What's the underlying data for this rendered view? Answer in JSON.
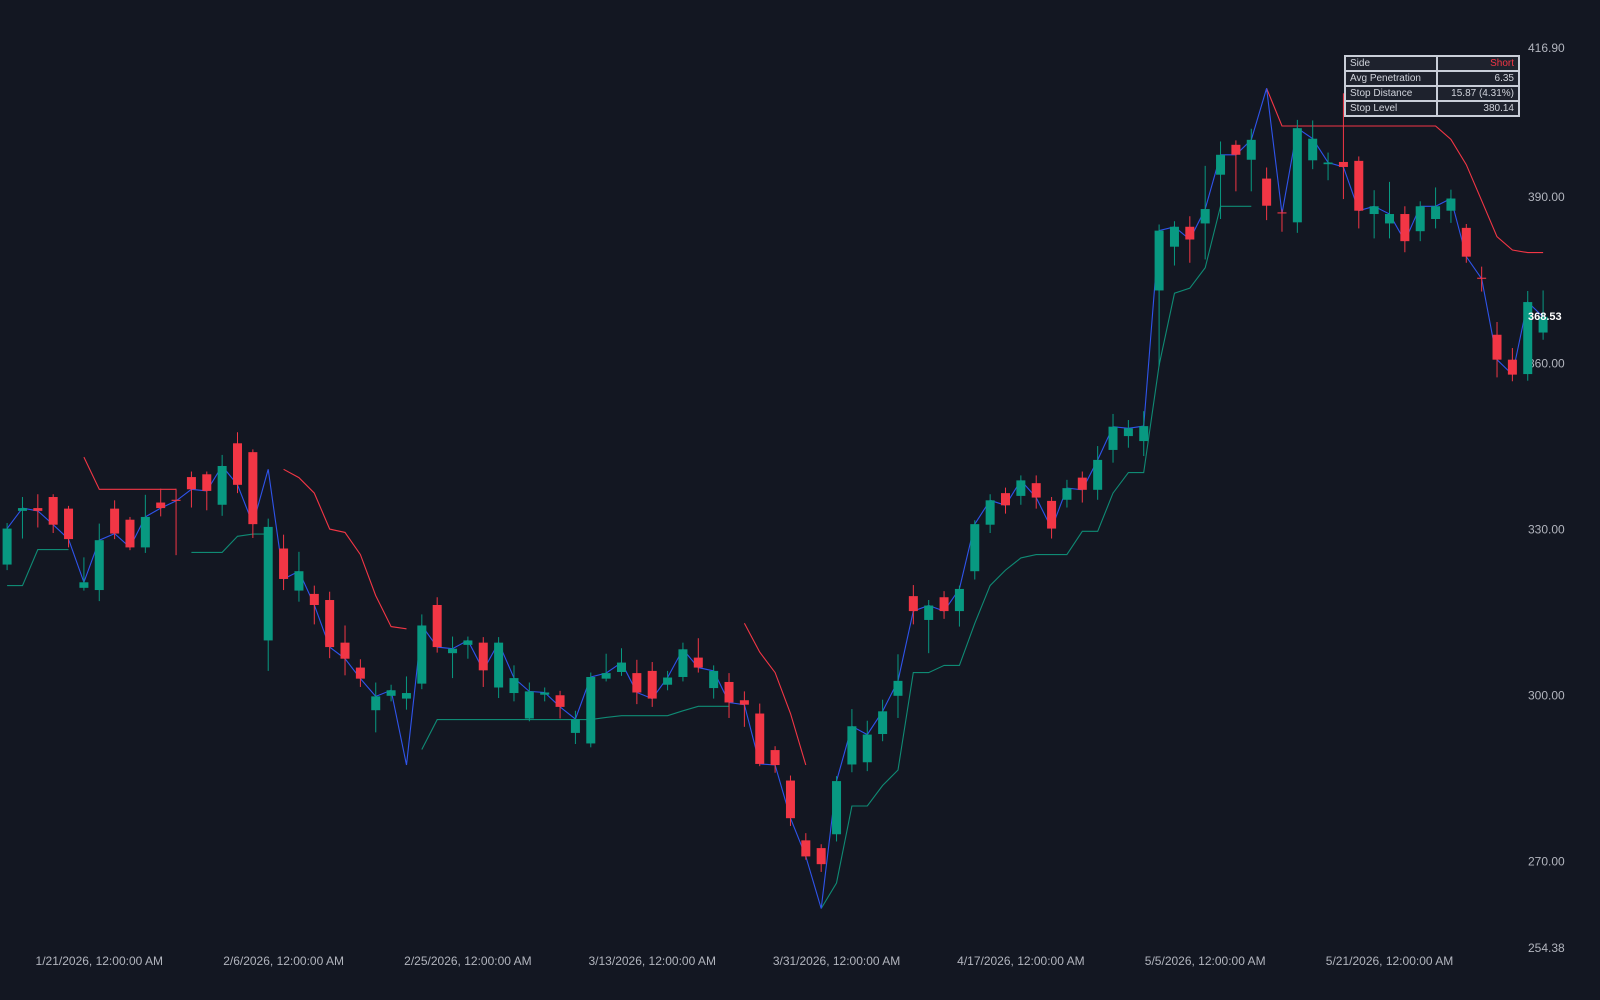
{
  "chart_data": {
    "type": "candlestick",
    "categories": [
      null,
      null,
      null,
      null,
      null,
      null,
      "1/21/2026, 12:00:00 AM",
      null,
      null,
      null,
      null,
      null,
      null,
      null,
      null,
      null,
      null,
      null,
      "2/6/2026, 12:00:00 AM",
      null,
      null,
      null,
      null,
      null,
      null,
      null,
      null,
      null,
      null,
      null,
      "2/25/2026, 12:00:00 AM",
      null,
      null,
      null,
      null,
      null,
      null,
      null,
      null,
      null,
      null,
      null,
      "3/13/2026, 12:00:00 AM",
      null,
      null,
      null,
      null,
      null,
      null,
      null,
      null,
      null,
      null,
      null,
      "3/31/2026, 12:00:00 AM",
      null,
      null,
      null,
      null,
      null,
      null,
      null,
      null,
      null,
      null,
      null,
      "4/17/2026, 12:00:00 AM",
      null,
      null,
      null,
      null,
      null,
      null,
      null,
      null,
      null,
      null,
      null,
      "5/5/2026, 12:00:00 AM",
      null,
      null,
      null,
      null,
      null,
      null,
      null,
      null,
      null,
      null,
      null,
      "5/21/2026, 12:00:00 AM",
      null,
      null,
      null,
      null,
      null,
      null,
      null,
      null,
      null,
      null
    ],
    "open": [
      323.8,
      333.5,
      334,
      336,
      333.9,
      319.6,
      319.2,
      333.9,
      331.9,
      326.9,
      335,
      335.5,
      339.6,
      340.1,
      334.6,
      345.7,
      344.1,
      310.1,
      326.7,
      319.1,
      318.5,
      317.4,
      309.7,
      305.2,
      297.5,
      300.1,
      299.6,
      302.3,
      316.5,
      307.8,
      309.3,
      309.7,
      301.6,
      300.6,
      296,
      300.3,
      300.2,
      293.4,
      291.5,
      303.2,
      304.4,
      304.2,
      304.6,
      302.1,
      303.5,
      307,
      301.5,
      302.6,
      299.3,
      296.9,
      290.3,
      284.8,
      274,
      272.6,
      275.1,
      287.7,
      288.1,
      293.2,
      300.1,
      318.1,
      313.8,
      317.9,
      315.4,
      322.6,
      331,
      336.7,
      336.2,
      338.5,
      335.3,
      335.5,
      339.5,
      337.3,
      344.5,
      347,
      346.1,
      373.3,
      381.2,
      384.8,
      385.4,
      394.2,
      399.6,
      396.9,
      393.5,
      387.4,
      385.6,
      396.8,
      396.1,
      396.5,
      396.7,
      387.1,
      385.4,
      387.1,
      384,
      386.2,
      387.7,
      384.6,
      375.6,
      365.3,
      360.8,
      358.2,
      365.7
    ],
    "high": [
      331.3,
      336,
      336.5,
      336.5,
      334.4,
      325.1,
      331.2,
      335.4,
      332.4,
      336.4,
      337.5,
      337.5,
      340.6,
      340.6,
      343.6,
      347.7,
      344.6,
      332.1,
      329.2,
      326.1,
      320,
      318.9,
      312.8,
      306.7,
      302.5,
      302.1,
      303.6,
      314.8,
      317.9,
      310.8,
      310.8,
      310.7,
      310.7,
      305.6,
      302.5,
      301.6,
      301,
      297.4,
      304.3,
      307.7,
      308.7,
      306.6,
      306.2,
      304.6,
      309.7,
      310.5,
      305.6,
      304.2,
      300.9,
      298.7,
      291,
      285.7,
      275.3,
      273.3,
      285.6,
      297.7,
      295.6,
      299.4,
      307.6,
      320.1,
      317.4,
      319,
      320,
      331.8,
      336.5,
      337.7,
      339.9,
      339.9,
      336,
      339.1,
      340.6,
      345.2,
      351,
      349.9,
      351.5,
      385.2,
      385.8,
      386.7,
      395.8,
      400.2,
      400.4,
      402.5,
      395.5,
      387.9,
      404.1,
      404,
      398.2,
      408.9,
      397.5,
      391.4,
      392.9,
      388.5,
      389.4,
      391.9,
      391.5,
      385.3,
      377.6,
      367.6,
      362.9,
      373.2,
      373.3
    ],
    "low": [
      322.8,
      328.5,
      330.5,
      329.5,
      326.9,
      319.1,
      317.2,
      328.4,
      326.4,
      325.9,
      332.5,
      325.5,
      334.1,
      333.6,
      332.6,
      336.7,
      328.6,
      304.6,
      319.2,
      317.1,
      313,
      306.9,
      303.8,
      301.7,
      293.5,
      299.1,
      297.6,
      301.3,
      307.9,
      303.3,
      306.8,
      301.7,
      299.7,
      299.1,
      295.5,
      299.1,
      296,
      291.4,
      290.8,
      302.7,
      303.7,
      298.6,
      298.1,
      301.1,
      302.7,
      304.3,
      299.6,
      296.1,
      294.5,
      287.4,
      286.2,
      276.6,
      270.5,
      268.3,
      273.8,
      286.3,
      286.5,
      291.9,
      296.1,
      313,
      307.8,
      314,
      312.6,
      321.1,
      329.5,
      333,
      334.6,
      333.9,
      328.5,
      334.1,
      335,
      335.5,
      342.2,
      344.9,
      343.4,
      359.6,
      377.8,
      378.3,
      378.9,
      386.2,
      391.2,
      391.2,
      386,
      383.9,
      383.7,
      395.2,
      393.2,
      389.8,
      384.5,
      382.7,
      382.7,
      380.2,
      382.2,
      384.5,
      385.5,
      378.3,
      373.1,
      357.6,
      356.9,
      357,
      364.4
    ],
    "close": [
      330.3,
      334,
      333.5,
      331,
      328.4,
      320.6,
      328.2,
      329.4,
      326.9,
      332.4,
      334,
      335.3,
      337.4,
      337.1,
      341.6,
      338.2,
      331.1,
      330.6,
      321.2,
      322.6,
      316.5,
      308.9,
      306.8,
      303.2,
      300,
      301.1,
      300.6,
      312.8,
      308.9,
      308.6,
      310.1,
      304.7,
      309.7,
      303.3,
      300.9,
      300.7,
      298.1,
      295.9,
      303.5,
      304.2,
      306.1,
      300.7,
      299.6,
      303.4,
      308.5,
      305.2,
      304.6,
      298.9,
      298.5,
      287.8,
      287.6,
      278,
      271.1,
      269.7,
      284.7,
      294.6,
      293.1,
      297.3,
      302.8,
      315.4,
      316.4,
      315.4,
      319.4,
      331.1,
      335.4,
      334.5,
      339,
      335.9,
      330.3,
      337.6,
      337.3,
      342.7,
      348.7,
      348.4,
      348.8,
      384.1,
      384.8,
      382.5,
      388,
      397.8,
      397.8,
      400.5,
      388.6,
      387.2,
      402.6,
      400.7,
      396.4,
      395.6,
      387.7,
      388.5,
      387.1,
      382.2,
      388.5,
      388.5,
      389.9,
      379.4,
      375.4,
      360.8,
      358.1,
      371.2,
      368.53
    ],
    "up_color": "#089981",
    "down_color": "#f23645",
    "overlays": [
      {
        "color": "#0f8a74",
        "values": [
          320,
          320,
          326.5,
          326.5,
          326.5,
          null,
          null,
          null,
          null,
          null,
          null,
          null,
          326,
          326,
          326,
          328.9,
          329.3,
          329.3,
          null,
          null,
          null,
          null,
          null,
          null,
          null,
          null,
          null,
          290.4,
          295.8,
          295.8,
          295.8,
          295.8,
          295.8,
          295.8,
          295.8,
          295.8,
          295.8,
          295.8,
          295.8,
          296.2,
          296.5,
          296.5,
          296.5,
          296.5,
          297.4,
          298.2,
          298.2,
          298.2,
          null,
          null,
          null,
          null,
          null,
          261.7,
          266.3,
          280.2,
          280.2,
          283.9,
          286.7,
          304.3,
          304.3,
          305.6,
          305.6,
          313.2,
          320,
          322.8,
          325,
          325.6,
          325.6,
          325.6,
          329.8,
          329.8,
          336.7,
          340.4,
          340.4,
          359.8,
          372.8,
          373.7,
          377.4,
          388.5,
          388.5,
          388.5,
          null,
          null,
          null,
          null,
          null,
          null,
          null,
          null,
          null,
          null,
          null,
          null,
          null,
          null,
          null,
          null,
          null,
          null,
          null
        ]
      },
      {
        "color": "#f23645",
        "values": [
          null,
          null,
          null,
          null,
          null,
          343.2,
          337.4,
          337.4,
          337.4,
          337.4,
          337.4,
          337.4,
          null,
          null,
          null,
          null,
          null,
          null,
          341,
          339.5,
          336.7,
          330.2,
          329.6,
          325.6,
          318.2,
          312.6,
          312.2,
          null,
          null,
          null,
          null,
          null,
          null,
          null,
          null,
          null,
          null,
          null,
          null,
          null,
          null,
          null,
          null,
          null,
          null,
          null,
          null,
          null,
          313.2,
          308,
          304.3,
          296.9,
          287.6,
          null,
          null,
          null,
          null,
          null,
          null,
          null,
          null,
          null,
          null,
          null,
          null,
          null,
          null,
          null,
          null,
          null,
          null,
          null,
          null,
          null,
          null,
          null,
          null,
          null,
          null,
          null,
          null,
          null,
          409.8,
          403,
          403,
          403,
          403,
          403,
          403,
          403,
          403,
          403,
          403,
          403,
          400.6,
          396,
          389.5,
          383,
          380.6,
          380.14,
          380.14
        ]
      },
      {
        "color": "#2f54eb",
        "values": [
          330.3,
          334,
          333.5,
          331,
          328.4,
          320.6,
          328.2,
          329.4,
          326.9,
          332.4,
          334,
          335.3,
          337.4,
          337.1,
          341.6,
          338.2,
          331.1,
          341,
          321.2,
          322.6,
          316.5,
          308.9,
          306.8,
          303.2,
          300,
          301.1,
          287.6,
          312.8,
          308.9,
          308.6,
          310.1,
          304.7,
          309.7,
          303.3,
          300.9,
          300.7,
          298.1,
          295.9,
          303.5,
          304.2,
          306.1,
          300.7,
          299.6,
          303.4,
          308.5,
          305.2,
          304.6,
          298.9,
          298.5,
          287.8,
          287.6,
          278,
          271.1,
          261.7,
          284.7,
          294.6,
          293.1,
          297.3,
          302.8,
          315.4,
          316.4,
          315.4,
          319.4,
          331.1,
          335.4,
          334.5,
          339,
          335.9,
          330.3,
          337.6,
          337.3,
          342.7,
          348.7,
          348.4,
          348.8,
          384.1,
          384.8,
          382.5,
          388,
          397.8,
          397.8,
          400.5,
          409.8,
          387.2,
          402.6,
          400.7,
          396.4,
          395.6,
          387.7,
          388.5,
          387.1,
          382.2,
          388.5,
          388.5,
          389.9,
          379.4,
          375.4,
          360.8,
          358.1,
          371.2,
          368.53
        ]
      }
    ],
    "ylim": [
      254.38,
      416.9
    ],
    "yticks": [
      {
        "value": 416.9,
        "label": "416.90"
      },
      {
        "value": 390,
        "label": "390.00"
      },
      {
        "value": 360,
        "label": "360.00"
      },
      {
        "value": 330,
        "label": "330.00"
      },
      {
        "value": 300,
        "label": "300.00"
      },
      {
        "value": 270,
        "label": "270.00"
      },
      {
        "value": 254.38,
        "label": "254.38"
      }
    ],
    "grid": false
  },
  "table": {
    "rows": [
      [
        "Side",
        "Short"
      ],
      [
        "Avg Penetration",
        "6.35"
      ],
      [
        "Stop Distance",
        "15.87 (4.31%)"
      ],
      [
        "Stop Level",
        "380.14"
      ]
    ]
  }
}
